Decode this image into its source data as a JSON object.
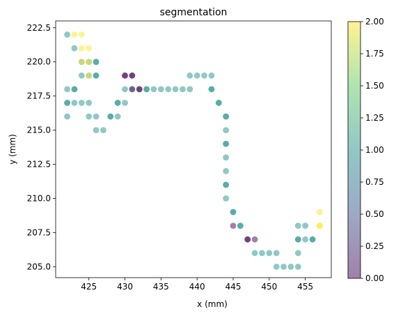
{
  "chart_data": {
    "type": "scatter",
    "title": "segmentation",
    "xlabel": "x (mm)",
    "ylabel": "y (mm)",
    "xlim": [
      420.4,
      458.6
    ],
    "ylim": [
      204.2,
      223.0
    ],
    "xticks": [
      425,
      430,
      435,
      440,
      445,
      450,
      455
    ],
    "yticks": [
      205.0,
      207.5,
      210.0,
      212.5,
      215.0,
      217.5,
      220.0,
      222.5
    ],
    "grid": false,
    "marker_alpha": 0.5,
    "colormap": "viridis",
    "colorbar": {
      "range": [
        0.0,
        2.0
      ],
      "ticks": [
        0.0,
        0.25,
        0.5,
        0.75,
        1.0,
        1.25,
        1.5,
        1.75,
        2.0
      ]
    },
    "points": [
      {
        "x": 422,
        "y": 222,
        "c": 1
      },
      {
        "x": 423,
        "y": 222,
        "c": 2
      },
      {
        "x": 424,
        "y": 222,
        "c": 2
      },
      {
        "x": 423,
        "y": 221,
        "c": 1
      },
      {
        "x": 424,
        "y": 221,
        "c": 2
      },
      {
        "x": 425,
        "y": 221,
        "c": 2
      },
      {
        "x": 424,
        "y": 220,
        "c": 1
      },
      {
        "x": 424,
        "y": 220,
        "c": 2
      },
      {
        "x": 425,
        "y": 220,
        "c": 1
      },
      {
        "x": 425,
        "y": 220,
        "c": 2
      },
      {
        "x": 426,
        "y": 220,
        "c": 1
      },
      {
        "x": 426,
        "y": 220,
        "c": 1
      },
      {
        "x": 424,
        "y": 219,
        "c": 1
      },
      {
        "x": 425,
        "y": 219,
        "c": 1
      },
      {
        "x": 425,
        "y": 219,
        "c": 2
      },
      {
        "x": 426,
        "y": 219,
        "c": 1
      },
      {
        "x": 426,
        "y": 219,
        "c": 1
      },
      {
        "x": 430,
        "y": 219,
        "c": 0
      },
      {
        "x": 430,
        "y": 219,
        "c": 0
      },
      {
        "x": 431,
        "y": 219,
        "c": 0
      },
      {
        "x": 431,
        "y": 219,
        "c": 0
      },
      {
        "x": 439,
        "y": 219,
        "c": 1
      },
      {
        "x": 440,
        "y": 219,
        "c": 1
      },
      {
        "x": 441,
        "y": 219,
        "c": 1
      },
      {
        "x": 442,
        "y": 219,
        "c": 1
      },
      {
        "x": 422,
        "y": 218,
        "c": 1
      },
      {
        "x": 423,
        "y": 218,
        "c": 1
      },
      {
        "x": 423,
        "y": 218,
        "c": 1
      },
      {
        "x": 430,
        "y": 218,
        "c": 1
      },
      {
        "x": 431,
        "y": 218,
        "c": 1
      },
      {
        "x": 431,
        "y": 218,
        "c": 0
      },
      {
        "x": 432,
        "y": 218,
        "c": 0
      },
      {
        "x": 432,
        "y": 218,
        "c": 0
      },
      {
        "x": 433,
        "y": 218,
        "c": 1
      },
      {
        "x": 433,
        "y": 218,
        "c": 1
      },
      {
        "x": 434,
        "y": 218,
        "c": 1
      },
      {
        "x": 435,
        "y": 218,
        "c": 1
      },
      {
        "x": 436,
        "y": 218,
        "c": 1
      },
      {
        "x": 437,
        "y": 218,
        "c": 1
      },
      {
        "x": 438,
        "y": 218,
        "c": 1
      },
      {
        "x": 439,
        "y": 218,
        "c": 1
      },
      {
        "x": 442,
        "y": 218,
        "c": 1
      },
      {
        "x": 442,
        "y": 218,
        "c": 1
      },
      {
        "x": 422,
        "y": 217,
        "c": 1
      },
      {
        "x": 422,
        "y": 217,
        "c": 1
      },
      {
        "x": 423,
        "y": 217,
        "c": 1
      },
      {
        "x": 424,
        "y": 217,
        "c": 1
      },
      {
        "x": 425,
        "y": 217,
        "c": 1
      },
      {
        "x": 429,
        "y": 217,
        "c": 1
      },
      {
        "x": 429,
        "y": 217,
        "c": 1
      },
      {
        "x": 430,
        "y": 217,
        "c": 1
      },
      {
        "x": 443,
        "y": 217,
        "c": 1
      },
      {
        "x": 443,
        "y": 217,
        "c": 1
      },
      {
        "x": 422,
        "y": 216,
        "c": 1
      },
      {
        "x": 425,
        "y": 216,
        "c": 1
      },
      {
        "x": 426,
        "y": 216,
        "c": 1
      },
      {
        "x": 428,
        "y": 216,
        "c": 1
      },
      {
        "x": 428,
        "y": 216,
        "c": 1
      },
      {
        "x": 429,
        "y": 216,
        "c": 1
      },
      {
        "x": 444,
        "y": 216,
        "c": 1
      },
      {
        "x": 444,
        "y": 216,
        "c": 1
      },
      {
        "x": 426,
        "y": 215,
        "c": 1
      },
      {
        "x": 427,
        "y": 215,
        "c": 1
      },
      {
        "x": 444,
        "y": 215,
        "c": 1
      },
      {
        "x": 444,
        "y": 214,
        "c": 1
      },
      {
        "x": 444,
        "y": 214,
        "c": 1
      },
      {
        "x": 444,
        "y": 213,
        "c": 1
      },
      {
        "x": 444,
        "y": 212,
        "c": 1
      },
      {
        "x": 444,
        "y": 211,
        "c": 1
      },
      {
        "x": 444,
        "y": 211,
        "c": 1
      },
      {
        "x": 444,
        "y": 210,
        "c": 1
      },
      {
        "x": 445,
        "y": 209,
        "c": 1
      },
      {
        "x": 445,
        "y": 209,
        "c": 1
      },
      {
        "x": 457,
        "y": 209,
        "c": 2
      },
      {
        "x": 445,
        "y": 208,
        "c": 0
      },
      {
        "x": 446,
        "y": 208,
        "c": 1
      },
      {
        "x": 446,
        "y": 208,
        "c": 1
      },
      {
        "x": 454,
        "y": 208,
        "c": 1
      },
      {
        "x": 455,
        "y": 208,
        "c": 1
      },
      {
        "x": 457,
        "y": 208,
        "c": 2
      },
      {
        "x": 457,
        "y": 208,
        "c": 2
      },
      {
        "x": 447,
        "y": 207,
        "c": 0
      },
      {
        "x": 447,
        "y": 207,
        "c": 0
      },
      {
        "x": 448,
        "y": 207,
        "c": 0
      },
      {
        "x": 454,
        "y": 207,
        "c": 1
      },
      {
        "x": 454,
        "y": 207,
        "c": 1
      },
      {
        "x": 455,
        "y": 207,
        "c": 1
      },
      {
        "x": 456,
        "y": 207,
        "c": 1
      },
      {
        "x": 456,
        "y": 207,
        "c": 1
      },
      {
        "x": 448,
        "y": 206,
        "c": 1
      },
      {
        "x": 449,
        "y": 206,
        "c": 1
      },
      {
        "x": 450,
        "y": 206,
        "c": 1
      },
      {
        "x": 451,
        "y": 206,
        "c": 1
      },
      {
        "x": 454,
        "y": 206,
        "c": 1
      },
      {
        "x": 451,
        "y": 205,
        "c": 1
      },
      {
        "x": 452,
        "y": 205,
        "c": 1
      },
      {
        "x": 453,
        "y": 205,
        "c": 1
      },
      {
        "x": 454,
        "y": 205,
        "c": 1
      }
    ]
  }
}
